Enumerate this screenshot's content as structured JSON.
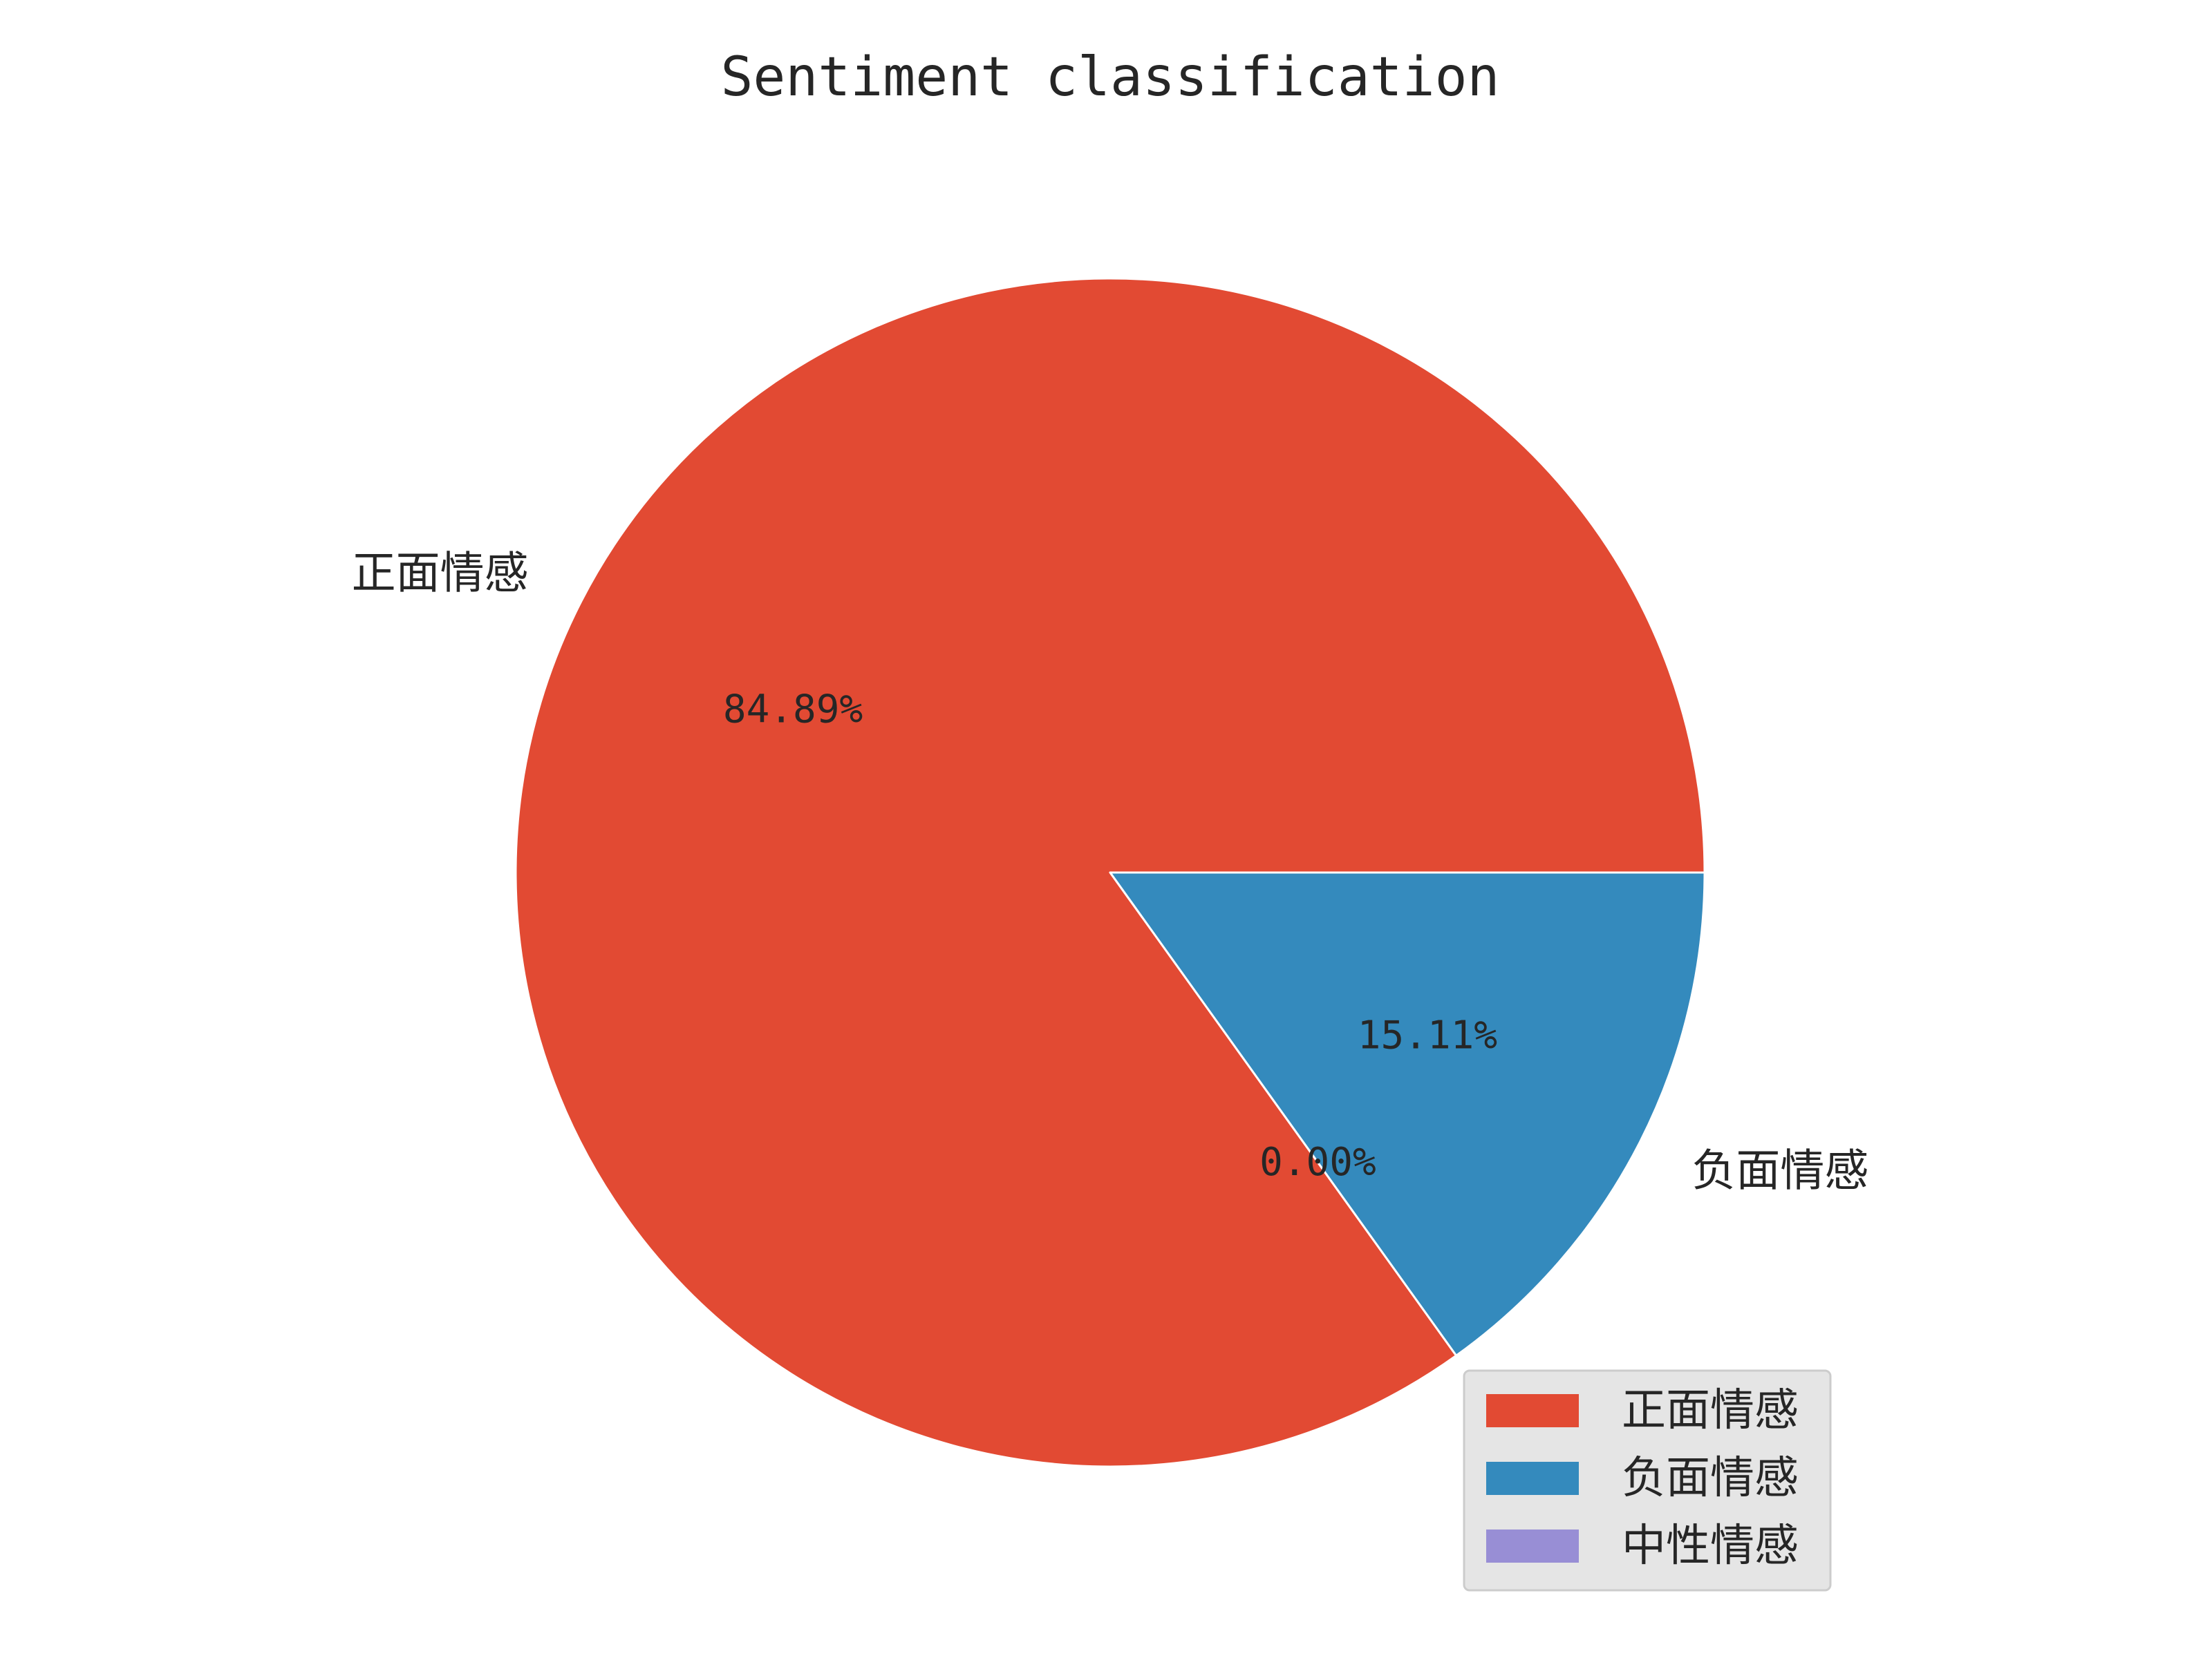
{
  "chart_data": {
    "type": "pie",
    "title": "Sentiment classification",
    "start_angle_deg": 0,
    "direction": "counterclockwise",
    "slices": [
      {
        "label": "正面情感",
        "value": 84.89,
        "pct_label": "84.89%",
        "color": "#E24A33"
      },
      {
        "label": "中性情感",
        "value": 0.0,
        "pct_label": "0.00%",
        "color": "#988ED5"
      },
      {
        "label": "负面情感",
        "value": 15.11,
        "pct_label": "15.11%",
        "color": "#348ABD"
      }
    ],
    "legend": {
      "location": "lower-right",
      "entries": [
        {
          "label": "正面情感",
          "color": "#E24A33"
        },
        {
          "label": "负面情感",
          "color": "#348ABD"
        },
        {
          "label": "中性情感",
          "color": "#988ED5"
        }
      ]
    }
  }
}
